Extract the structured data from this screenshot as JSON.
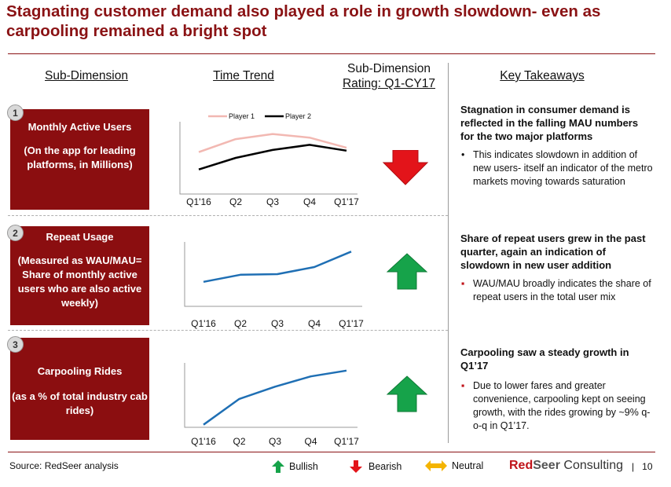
{
  "title": "Stagnating customer demand also played a role in growth slowdown- even as carpooling remained a bright spot",
  "headers": {
    "sub_dimension": "Sub-Dimension",
    "time_trend": "Time Trend",
    "rating_line1": "Sub-Dimension",
    "rating_line2": "Rating: Q1-CY17",
    "key_takeaways": "Key Takeaways"
  },
  "rows": [
    {
      "number": "1",
      "box_title": "Monthly Active Users",
      "box_sub": "(On the app for leading platforms, in Millions)",
      "rating": "bearish",
      "takeaway_head": "Stagnation in consumer demand is reflected in the falling MAU numbers for the two major platforms",
      "bullet_marker": "•",
      "takeaway_body": "This indicates slowdown in addition of new users- itself an indicator of the metro markets moving towards saturation"
    },
    {
      "number": "2",
      "box_title": "Repeat Usage",
      "box_sub": "(Measured as WAU/MAU= Share of monthly active users who are also active weekly)",
      "rating": "bullish",
      "takeaway_head": "Share of repeat users grew in the past quarter, again an indication of slowdown in new user addition",
      "bullet_marker": "▪",
      "takeaway_body": "WAU/MAU broadly indicates the share of repeat users in the total user mix"
    },
    {
      "number": "3",
      "box_title": "Carpooling Rides",
      "box_sub": "(as a % of total industry cab rides)",
      "rating": "bullish",
      "takeaway_head": "Carpooling saw a steady growth in Q1’17",
      "bullet_marker": "▪",
      "takeaway_body": "Due to lower fares and greater convenience, carpooling kept on seeing growth, with the rides growing by ~9% q-o-q in Q1’17."
    }
  ],
  "chart_data": [
    {
      "type": "line",
      "categories": [
        "Q1'16",
        "Q2",
        "Q3",
        "Q4",
        "Q1'17"
      ],
      "series": [
        {
          "name": "Player 1",
          "color": "#f2b8b2",
          "values": [
            0.58,
            0.76,
            0.83,
            0.78,
            0.64
          ]
        },
        {
          "name": "Player 2",
          "color": "#000000",
          "values": [
            0.34,
            0.5,
            0.61,
            0.68,
            0.6
          ]
        }
      ],
      "ylim": [
        0,
        1
      ],
      "legend": "top",
      "grid": false
    },
    {
      "type": "line",
      "categories": [
        "Q1'16",
        "Q2",
        "Q3",
        "Q4",
        "Q1'17"
      ],
      "series": [
        {
          "color": "#1f6fb4",
          "values": [
            0.38,
            0.49,
            0.5,
            0.61,
            0.85
          ]
        }
      ],
      "ylim": [
        0,
        1
      ],
      "grid": false
    },
    {
      "type": "line",
      "categories": [
        "Q1'16",
        "Q2",
        "Q3",
        "Q4",
        "Q1'17"
      ],
      "series": [
        {
          "color": "#1f6fb4",
          "values": [
            0.04,
            0.44,
            0.63,
            0.79,
            0.88
          ]
        }
      ],
      "ylim": [
        0,
        1
      ],
      "grid": false
    }
  ],
  "footer": {
    "source": "Source: RedSeer analysis",
    "bullish_label": "Bullish",
    "bearish_label": "Bearish",
    "neutral_label": "Neutral",
    "brand_red": "Red",
    "brand_seer": "Seer",
    "brand_consulting": " Consulting",
    "separator": "|",
    "page": "10"
  },
  "colors": {
    "brand": "#8a1214",
    "box": "#8b0e10",
    "bullish": "#16a34a",
    "bearish": "#e3141a",
    "neutral": "#f4b400",
    "line": "#1f6fb4"
  }
}
